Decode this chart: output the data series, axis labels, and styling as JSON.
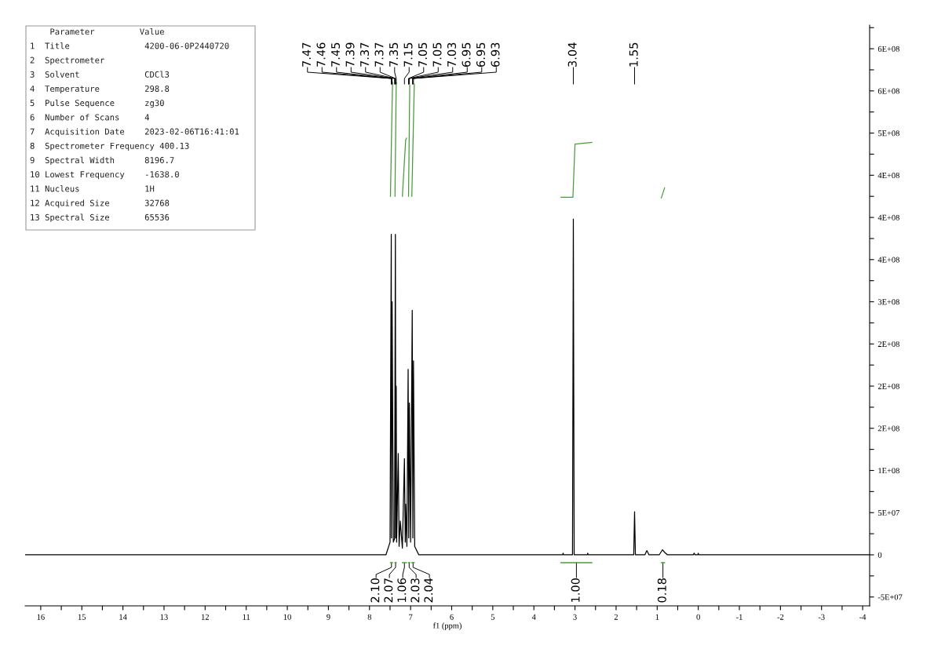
{
  "chart_data": {
    "type": "line",
    "xlabel": "f1 (ppm)",
    "xlim": [
      16.38,
      -4.17
    ],
    "ylim": [
      -60500000,
      628000000
    ],
    "xticks": [
      16,
      {
        "value": 15.5,
        "label": null
      },
      15,
      {
        "value": 14.5,
        "label": null
      },
      14,
      {
        "value": 13.5,
        "label": null
      },
      13,
      {
        "value": 12.5,
        "label": null
      },
      12,
      {
        "value": 11.5,
        "label": null
      },
      11,
      {
        "value": 10.5,
        "label": null
      },
      10,
      {
        "value": 9.5,
        "label": null
      },
      9,
      {
        "value": 8.5,
        "label": null
      },
      8,
      {
        "value": 7.5,
        "label": null
      },
      7,
      {
        "value": 6.5,
        "label": null
      },
      6,
      {
        "value": 5.5,
        "label": null
      },
      5,
      {
        "value": 4.5,
        "label": null
      },
      4,
      {
        "value": 3.5,
        "label": null
      },
      3,
      {
        "value": 2.5,
        "label": null
      },
      2,
      {
        "value": 1.5,
        "label": null
      },
      1,
      {
        "value": 0.5,
        "label": null
      },
      0,
      {
        "value": -0.5,
        "label": null
      },
      -1,
      {
        "value": -1.5,
        "label": null
      },
      -2,
      {
        "value": -2.5,
        "label": null
      },
      -3,
      {
        "value": -3.5,
        "label": null
      },
      -4
    ],
    "yticks": [
      {
        "value": -50000000,
        "label": "-5E+07"
      },
      {
        "value": -25000000,
        "label": null
      },
      0,
      {
        "value": 25000000,
        "label": null
      },
      {
        "value": 50000000,
        "label": "5E+07"
      },
      {
        "value": 75000000,
        "label": null
      },
      {
        "value": 100000000,
        "label": "1E+08"
      },
      {
        "value": 125000000,
        "label": null
      },
      {
        "value": 150000000,
        "label": "2E+08"
      },
      {
        "value": 175000000,
        "label": null
      },
      {
        "value": 200000000,
        "label": "2E+08"
      },
      {
        "value": 225000000,
        "label": null
      },
      {
        "value": 250000000,
        "label": "2E+08"
      },
      {
        "value": 275000000,
        "label": null
      },
      {
        "value": 300000000,
        "label": "3E+08"
      },
      {
        "value": 325000000,
        "label": null
      },
      {
        "value": 350000000,
        "label": "4E+08"
      },
      {
        "value": 375000000,
        "label": null
      },
      {
        "value": 400000000,
        "label": "4E+08"
      },
      {
        "value": 425000000,
        "label": null
      },
      {
        "value": 450000000,
        "label": "4E+08"
      },
      {
        "value": 475000000,
        "label": null
      },
      {
        "value": 500000000,
        "label": "5E+08"
      },
      {
        "value": 525000000,
        "label": null
      },
      {
        "value": 550000000,
        "label": "6E+08"
      },
      {
        "value": 575000000,
        "label": null
      },
      {
        "value": 600000000,
        "label": "6E+08"
      },
      {
        "value": 625000000,
        "label": null
      }
    ],
    "grid": false,
    "legend": false,
    "marker": "none",
    "line_style": "solid",
    "series": [
      {
        "color": "#000000",
        "x": [
          16.38,
          7.6,
          7.5,
          7.47,
          7.465,
          7.45,
          7.42,
          7.39,
          7.37,
          7.36,
          7.35,
          7.34,
          7.3,
          7.28,
          7.25,
          7.2,
          7.15,
          7.13,
          7.12,
          7.09,
          7.06,
          7.045,
          7.03,
          7.0,
          6.96,
          6.945,
          6.93,
          6.9,
          6.8,
          3.3,
          3.29,
          3.28,
          3.06,
          3.04,
          3.02,
          2.7,
          2.69,
          2.68,
          1.57,
          1.55,
          1.53,
          1.3,
          1.25,
          1.2,
          0.95,
          0.87,
          0.82,
          0.75,
          0.12,
          0.1,
          0.08,
          0.01,
          0.0,
          -0.01,
          -4.17
        ],
        "values": [
          0,
          0,
          15000000,
          380000000,
          20000000,
          300000000,
          15000000,
          19000000,
          380000000,
          20000000,
          200000000,
          15000000,
          120000000,
          10000000,
          40000000,
          8000000,
          114000000,
          15000000,
          60000000,
          10000000,
          220000000,
          20000000,
          180000000,
          15000000,
          290000000,
          20000000,
          230000000,
          10000000,
          0,
          0,
          2000000,
          0,
          0,
          398000000,
          0,
          0,
          2000000,
          0,
          0,
          51000000,
          0,
          0,
          5000000,
          0,
          0,
          6000000,
          3000000,
          0,
          0,
          2000000,
          0,
          0,
          2000000,
          0,
          0
        ]
      },
      {
        "color": "#4a9a3a",
        "x": [
          7.49,
          7.44
        ],
        "values": [
          425000000,
          560000000
        ]
      },
      {
        "color": "#4a9a3a",
        "x": [
          7.38,
          7.35
        ],
        "values": [
          425000000,
          560000000
        ]
      },
      {
        "color": "#4a9a3a",
        "x": [
          7.2,
          7.12,
          7.1
        ],
        "values": [
          425000000,
          492000000,
          494000000
        ]
      },
      {
        "color": "#4a9a3a",
        "x": [
          7.05,
          7.02
        ],
        "values": [
          425000000,
          557000000
        ]
      },
      {
        "color": "#4a9a3a",
        "x": [
          6.97,
          6.91
        ],
        "values": [
          425000000,
          558000000
        ]
      },
      {
        "color": "#4a9a3a",
        "x": [
          3.34,
          3.05,
          3.0,
          2.59
        ],
        "values": [
          424000000,
          424000000,
          487000000,
          489000000
        ]
      },
      {
        "color": "#4a9a3a",
        "x": [
          0.9,
          0.82
        ],
        "values": [
          423000000,
          435000000
        ]
      }
    ],
    "annotations": [
      "    Parameter         Value",
      "1  Title               4200-06-0P2440720",
      "2  Spectrometer",
      "3  Solvent             CDCl3",
      "4  Temperature         298.8",
      "5  Pulse Sequence      zg30",
      "6  Number of Scans     4",
      "7  Acquisition Date    2023-02-06T16:41:01",
      "8  Spectrometer Frequency 400.13",
      "9  Spectral Width      8196.7",
      "10 Lowest Frequency    -1638.0",
      "11 Nucleus             1H",
      "12 Acquired Size       32768",
      "13 Spectral Size       65536",
      {
        "text": "7.47",
        "x": 7.47
      },
      {
        "text": "7.46",
        "x": 7.46
      },
      {
        "text": "7.45",
        "x": 7.45
      },
      {
        "text": "7.39",
        "x": 7.39
      },
      {
        "text": "7.37",
        "x": 7.37
      },
      {
        "text": "7.37",
        "x": 7.37
      },
      {
        "text": "7.35",
        "x": 7.35
      },
      {
        "text": "7.15",
        "x": 7.15
      },
      {
        "text": "7.05",
        "x": 7.05
      },
      {
        "text": "7.05",
        "x": 7.05
      },
      {
        "text": "7.03",
        "x": 7.03
      },
      {
        "text": "6.95",
        "x": 6.95
      },
      {
        "text": "6.95",
        "x": 6.95
      },
      {
        "text": "6.93",
        "x": 6.93
      },
      {
        "text": "3.04",
        "x": 3.04
      },
      {
        "text": "1.55",
        "x": 1.55
      },
      "2.10",
      "2.07",
      "1.06",
      "2.03",
      "2.04",
      "1.00",
      "0.18"
    ]
  }
}
